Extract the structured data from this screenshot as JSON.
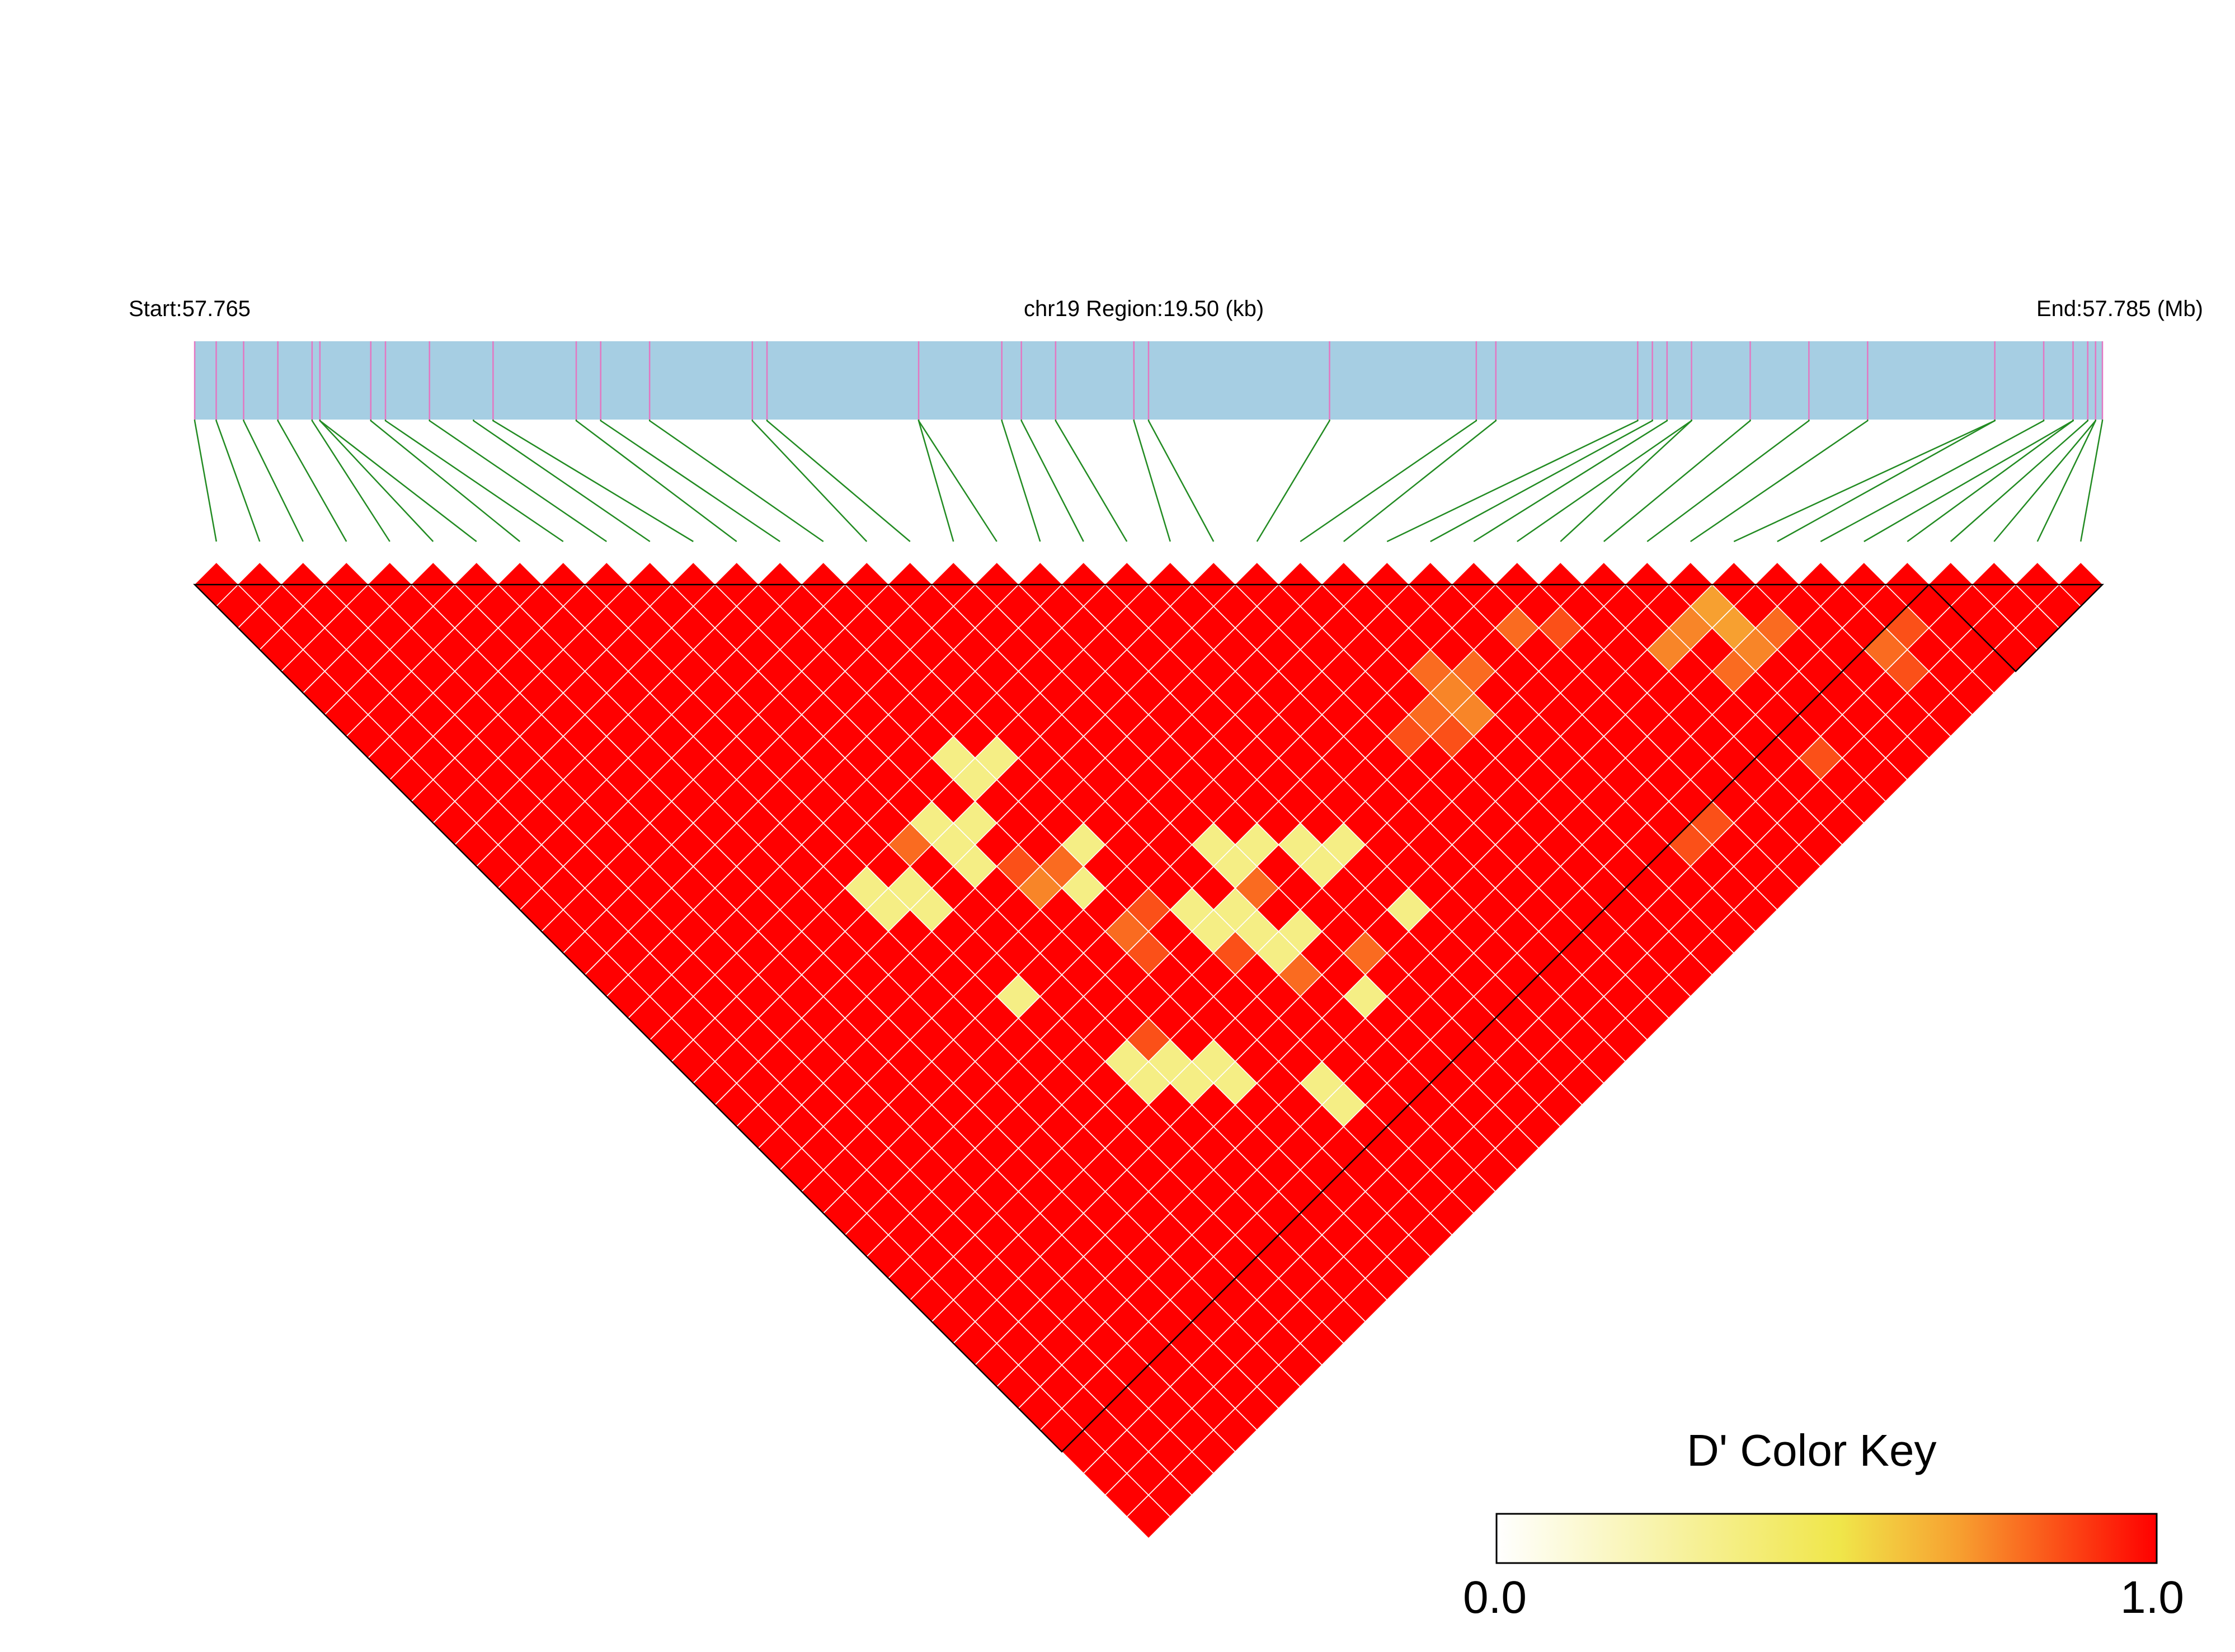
{
  "chart_data": {
    "type": "heatmap",
    "subtype": "LD triangle heatmap",
    "header": {
      "start_label": "Start:57.765",
      "region_label": "chr19 Region:19.50 (kb)",
      "end_label": "End:57.785 (Mb)"
    },
    "snp_count": 44,
    "snp_positions_kb": [
      0.0,
      0.22,
      0.5,
      0.85,
      1.2,
      1.28,
      1.8,
      1.95,
      2.4,
      2.85,
      3.05,
      3.9,
      4.15,
      4.65,
      5.7,
      5.85,
      7.4,
      8.25,
      8.45,
      8.8,
      9.6,
      9.75,
      11.6,
      13.1,
      13.3,
      14.75,
      14.9,
      15.05,
      15.3,
      15.9,
      16.5,
      17.1,
      18.4,
      18.9,
      19.43,
      19.5
    ],
    "marker_lines_kb": [
      0.0,
      0.22,
      0.5,
      0.85,
      1.2,
      1.28,
      1.8,
      1.95,
      2.4,
      3.05,
      3.9,
      4.15,
      4.65,
      5.7,
      5.85,
      7.4,
      8.25,
      8.45,
      8.8,
      9.6,
      9.75,
      11.6,
      13.1,
      13.3,
      14.75,
      14.9,
      15.05,
      15.3,
      15.9,
      16.5,
      17.1,
      18.4,
      18.9,
      19.2,
      19.35,
      19.43,
      19.5
    ],
    "snp_index_positions_kb": [
      0.0,
      0.22,
      0.5,
      0.85,
      1.2,
      1.28,
      1.28,
      1.8,
      1.95,
      2.4,
      2.85,
      3.05,
      3.9,
      4.15,
      4.65,
      5.7,
      5.85,
      7.4,
      7.4,
      8.25,
      8.45,
      8.8,
      9.6,
      9.75,
      11.6,
      13.1,
      13.3,
      14.75,
      14.9,
      15.05,
      15.3,
      15.3,
      15.9,
      16.5,
      17.1,
      18.4,
      18.4,
      18.9,
      19.2,
      19.2,
      19.35,
      19.43,
      19.43,
      19.5
    ],
    "value_name": "D'",
    "default_value": 1.0,
    "cells": [
      {
        "i": 0,
        "j": 0,
        "v": 1.0
      }
    ],
    "low_ld_cells": [
      {
        "i": 13,
        "j": 21,
        "v": 0.35
      },
      {
        "i": 13,
        "j": 22,
        "v": 0.35
      },
      {
        "i": 14,
        "j": 22,
        "v": 0.35
      },
      {
        "i": 11,
        "j": 22,
        "v": 0.35
      },
      {
        "i": 11,
        "j": 23,
        "v": 0.35
      },
      {
        "i": 12,
        "j": 23,
        "v": 0.35
      },
      {
        "i": 10,
        "j": 22,
        "v": 0.8
      },
      {
        "i": 11,
        "j": 24,
        "v": 0.35
      },
      {
        "i": 8,
        "j": 22,
        "v": 0.35
      },
      {
        "i": 8,
        "j": 23,
        "v": 0.35
      },
      {
        "i": 9,
        "j": 23,
        "v": 0.35
      },
      {
        "i": 9,
        "j": 24,
        "v": 0.35
      },
      {
        "i": 14,
        "j": 26,
        "v": 0.35
      },
      {
        "i": 13,
        "j": 27,
        "v": 0.35
      },
      {
        "i": 12,
        "j": 26,
        "v": 0.75
      },
      {
        "i": 13,
        "j": 26,
        "v": 0.8
      },
      {
        "i": 12,
        "j": 25,
        "v": 0.85
      },
      {
        "i": 9,
        "j": 28,
        "v": 0.35
      },
      {
        "i": 17,
        "j": 29,
        "v": 0.35
      },
      {
        "i": 17,
        "j": 30,
        "v": 0.35
      },
      {
        "i": 18,
        "j": 30,
        "v": 0.35
      },
      {
        "i": 15,
        "j": 30,
        "v": 0.35
      },
      {
        "i": 15,
        "j": 31,
        "v": 0.35
      },
      {
        "i": 16,
        "j": 31,
        "v": 0.35
      },
      {
        "i": 19,
        "j": 31,
        "v": 0.35
      },
      {
        "i": 19,
        "j": 32,
        "v": 0.35
      },
      {
        "i": 20,
        "j": 32,
        "v": 0.35
      },
      {
        "i": 16,
        "j": 32,
        "v": 0.35
      },
      {
        "i": 16,
        "j": 33,
        "v": 0.35
      },
      {
        "i": 17,
        "j": 33,
        "v": 0.35
      },
      {
        "i": 10,
        "j": 32,
        "v": 0.35
      },
      {
        "i": 10,
        "j": 33,
        "v": 0.35
      },
      {
        "i": 11,
        "j": 33,
        "v": 0.35
      },
      {
        "i": 11,
        "j": 34,
        "v": 0.35
      },
      {
        "i": 12,
        "j": 34,
        "v": 0.35
      },
      {
        "i": 12,
        "j": 35,
        "v": 0.35
      },
      {
        "i": 20,
        "j": 35,
        "v": 0.35
      },
      {
        "i": 17,
        "j": 36,
        "v": 0.35
      },
      {
        "i": 14,
        "j": 37,
        "v": 0.35
      },
      {
        "i": 14,
        "j": 38,
        "v": 0.35
      },
      {
        "i": 13,
        "j": 29,
        "v": 0.8
      },
      {
        "i": 14,
        "j": 29,
        "v": 0.85
      },
      {
        "i": 15,
        "j": 32,
        "v": 0.85
      },
      {
        "i": 17,
        "j": 31,
        "v": 0.8
      },
      {
        "i": 13,
        "j": 30,
        "v": 0.85
      },
      {
        "i": 11,
        "j": 32,
        "v": 0.85
      },
      {
        "i": 16,
        "j": 34,
        "v": 0.8
      },
      {
        "i": 18,
        "j": 35,
        "v": 0.8
      },
      {
        "i": 29,
        "j": 31,
        "v": 0.8
      },
      {
        "i": 30,
        "j": 32,
        "v": 0.85
      },
      {
        "i": 33,
        "j": 35,
        "v": 0.75
      },
      {
        "i": 34,
        "j": 35,
        "v": 0.7
      },
      {
        "i": 34,
        "j": 36,
        "v": 0.7
      },
      {
        "i": 32,
        "j": 35,
        "v": 0.75
      },
      {
        "i": 34,
        "j": 37,
        "v": 0.75
      },
      {
        "i": 35,
        "j": 37,
        "v": 0.8
      },
      {
        "i": 33,
        "j": 37,
        "v": 0.8
      },
      {
        "i": 26,
        "j": 30,
        "v": 0.8
      },
      {
        "i": 26,
        "j": 31,
        "v": 0.75
      },
      {
        "i": 27,
        "j": 31,
        "v": 0.8
      },
      {
        "i": 25,
        "j": 31,
        "v": 0.8
      },
      {
        "i": 26,
        "j": 32,
        "v": 0.75
      },
      {
        "i": 25,
        "j": 32,
        "v": 0.85
      },
      {
        "i": 24,
        "j": 31,
        "v": 0.85
      },
      {
        "i": 38,
        "j": 40,
        "v": 0.85
      },
      {
        "i": 37,
        "j": 40,
        "v": 0.8
      },
      {
        "i": 37,
        "j": 41,
        "v": 0.85
      },
      {
        "i": 33,
        "j": 41,
        "v": 0.85
      },
      {
        "i": 28,
        "j": 40,
        "v": 0.85
      },
      {
        "i": 29,
        "j": 40,
        "v": 0.85
      }
    ],
    "block_lines": [
      {
        "from": 0,
        "to": 39
      },
      {
        "from": 40,
        "to": 43
      }
    ],
    "color_key": {
      "title": "D' Color Key",
      "min_label": "0.0",
      "max_label": "1.0",
      "colors": [
        "#ffffff",
        "#f0e64a",
        "#ff0000"
      ]
    },
    "colors": {
      "track_fill": "#a6cee3",
      "track_marker": "#e377c2",
      "connector": "#228b22",
      "max_ld": "#ff0000"
    }
  }
}
